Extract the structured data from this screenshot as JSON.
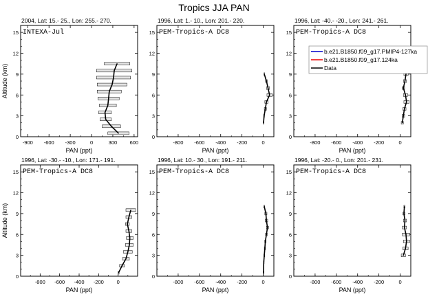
{
  "title": "Tropics JJA PAN",
  "chart_data": [
    {
      "type": "line",
      "header": "2004, Lat: 15.- 25., Lon: 255.- 270.",
      "campaign": "INTEXA-Jul",
      "xlabel": "PAN (ppt)",
      "ylabel": "Altitude (km)",
      "xlim": [
        -1000,
        650
      ],
      "ylim": [
        0,
        16
      ],
      "xticks": [
        "-900",
        "-600",
        "-300",
        "0",
        "300",
        "600"
      ],
      "yticks": [
        "0",
        "3",
        "6",
        "9",
        "12",
        "15"
      ],
      "legend": null,
      "series": [
        {
          "name": "Data",
          "alt": [
            0.5,
            1.5,
            2.5,
            3.5,
            4.5,
            5.5,
            6.5,
            7.5,
            8.5,
            9.5,
            10.5
          ],
          "pan": [
            380,
            280,
            200,
            190,
            230,
            240,
            250,
            290,
            310,
            320,
            360
          ],
          "err": [
            150,
            130,
            80,
            90,
            120,
            150,
            170,
            210,
            240,
            250,
            180
          ]
        }
      ]
    },
    {
      "type": "line",
      "header": "1996, Lat: 1.- 10., Lon: 201.- 220.",
      "campaign": "PEM-Tropics-A DC8",
      "xlabel": "PAN (ppt)",
      "ylabel": "",
      "xlim": [
        -1000,
        100
      ],
      "ylim": [
        0,
        16
      ],
      "xticks": [
        "-800",
        "-600",
        "-400",
        "-200",
        "0"
      ],
      "yticks": [
        "0",
        "3",
        "6",
        "9",
        "12",
        "15"
      ],
      "legend": null,
      "series": [
        {
          "name": "Data",
          "alt": [
            2,
            3,
            4,
            5,
            6,
            7,
            8,
            9
          ],
          "pan": [
            3,
            8,
            20,
            30,
            60,
            45,
            30,
            10
          ],
          "err": [
            3,
            4,
            10,
            15,
            25,
            15,
            8,
            3
          ]
        }
      ]
    },
    {
      "type": "line",
      "header": "1996, Lat: -40.- -20., Lon: 241.- 261.",
      "campaign": "PEM-Tropics-A DC8",
      "xlabel": "PAN (ppt)",
      "ylabel": "",
      "xlim": [
        -1000,
        100
      ],
      "ylim": [
        0,
        16
      ],
      "xticks": [
        "-800",
        "-600",
        "-400",
        "-200",
        "0"
      ],
      "yticks": [
        "0",
        "3",
        "6",
        "9",
        "12",
        "15"
      ],
      "legend": {
        "entries": [
          {
            "label": "b.e21.B1850.f09_g17.PMIP4-127ka",
            "color": "#0000cc"
          },
          {
            "label": "b.e21.B1850.f09_g17.124ka",
            "color": "#ee0000"
          },
          {
            "label": "Data",
            "color": "#000000"
          }
        ]
      },
      "series": [
        {
          "name": "Data",
          "alt": [
            2,
            3,
            4,
            5,
            6,
            7,
            8,
            9,
            10
          ],
          "pan": [
            20,
            30,
            40,
            60,
            50,
            30,
            45,
            55,
            60
          ],
          "err": [
            10,
            12,
            15,
            25,
            20,
            12,
            15,
            20,
            10
          ]
        }
      ]
    },
    {
      "type": "line",
      "header": "1996, Lat: -30.- -10., Lon: 171.- 191.",
      "campaign": "PEM-Tropics-A DC8",
      "xlabel": "PAN (ppt)",
      "ylabel": "Altitude (km)",
      "xlim": [
        -1000,
        200
      ],
      "ylim": [
        0,
        16
      ],
      "xticks": [
        "-800",
        "-600",
        "-400",
        "-200",
        "0"
      ],
      "yticks": [
        "0",
        "3",
        "6",
        "9",
        "12",
        "15"
      ],
      "legend": null,
      "series": [
        {
          "name": "Data",
          "alt": [
            0.5,
            1.5,
            2.5,
            3.5,
            4.5,
            5.5,
            6.5,
            7.5,
            8.5,
            9.5
          ],
          "pan": [
            5,
            40,
            80,
            100,
            115,
            120,
            110,
            95,
            110,
            130
          ],
          "err": [
            5,
            25,
            35,
            45,
            40,
            35,
            30,
            20,
            30,
            50
          ]
        }
      ]
    },
    {
      "type": "line",
      "header": "1996, Lat: 10.- 30., Lon: 191.- 211.",
      "campaign": "PEM-Tropics-A DC8",
      "xlabel": "PAN (ppt)",
      "ylabel": "",
      "xlim": [
        -1000,
        100
      ],
      "ylim": [
        0,
        16
      ],
      "xticks": [
        "-800",
        "-600",
        "-400",
        "-200",
        "0"
      ],
      "yticks": [
        "0",
        "3",
        "6",
        "9",
        "12",
        "15"
      ],
      "legend": null,
      "series": [
        {
          "name": "Data",
          "alt": [
            0.5,
            2,
            3,
            4,
            5,
            6,
            7,
            8,
            9,
            10
          ],
          "pan": [
            2,
            5,
            10,
            15,
            20,
            30,
            40,
            30,
            25,
            10
          ],
          "err": [
            2,
            3,
            4,
            5,
            6,
            8,
            10,
            12,
            10,
            4
          ]
        }
      ]
    },
    {
      "type": "line",
      "header": "1996, Lat: -20.- 0., Lon: 201.- 231.",
      "campaign": "PEM-Tropics-A DC8",
      "xlabel": "PAN (ppt)",
      "ylabel": "",
      "xlim": [
        -1000,
        100
      ],
      "ylim": [
        0,
        16
      ],
      "xticks": [
        "-800",
        "-600",
        "-400",
        "-200",
        "0"
      ],
      "yticks": [
        "0",
        "3",
        "6",
        "9",
        "12",
        "15"
      ],
      "legend": null,
      "series": [
        {
          "name": "Data",
          "alt": [
            3,
            4,
            5,
            6,
            7,
            8,
            9,
            10
          ],
          "pan": [
            30,
            50,
            60,
            55,
            40,
            45,
            35,
            40
          ],
          "err": [
            20,
            25,
            30,
            35,
            20,
            15,
            10,
            5
          ]
        }
      ]
    }
  ]
}
